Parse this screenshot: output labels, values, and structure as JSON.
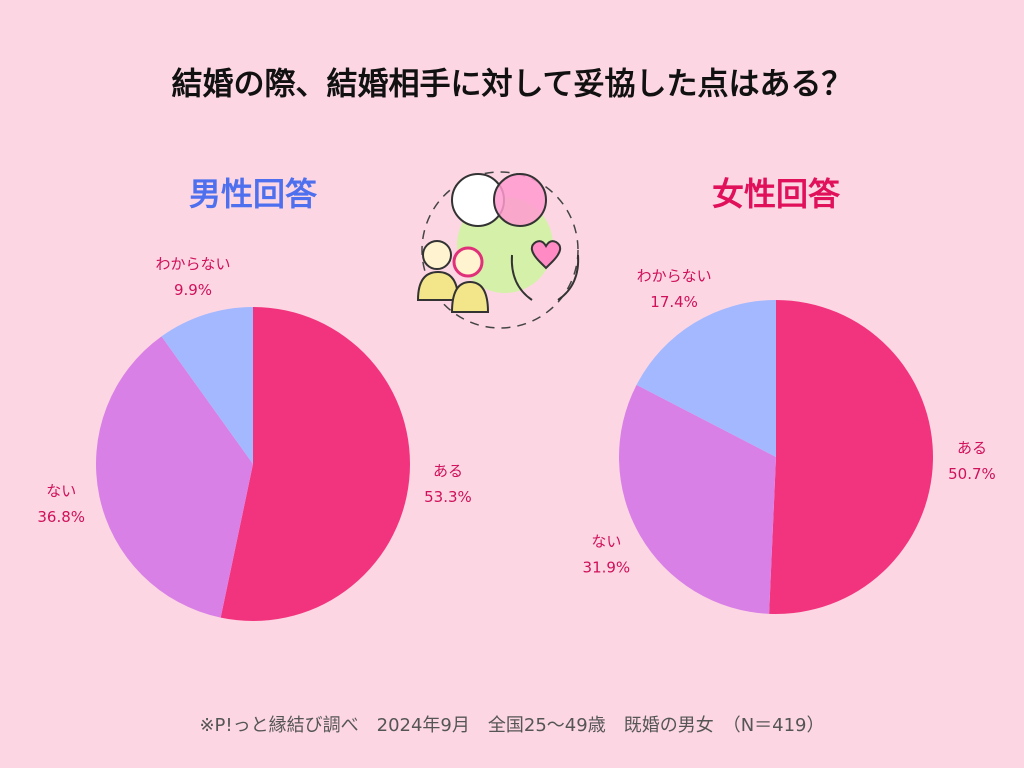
{
  "title": "結婚の際、結婚相手に対して妥協した点はある？",
  "footnote": "※P!っと縁結び調べ　2024年9月　全国25～49歳　既婚の男女　（N＝419）",
  "chart_data": [
    {
      "type": "pie",
      "title": "男性回答",
      "title_color": "#4f70ee",
      "categories": [
        "ある",
        "ない",
        "わからない"
      ],
      "values": [
        53.3,
        36.8,
        9.9
      ],
      "value_labels": [
        "53.3%",
        "36.8%",
        "9.9%"
      ],
      "colors": [
        "#f2347e",
        "#d980e6",
        "#a3b8ff"
      ]
    },
    {
      "type": "pie",
      "title": "女性回答",
      "title_color": "#e0105a",
      "categories": [
        "ある",
        "ない",
        "わからない"
      ],
      "values": [
        50.7,
        31.9,
        17.4
      ],
      "value_labels": [
        "50.7%",
        "31.9%",
        "17.4%"
      ],
      "colors": [
        "#f2347e",
        "#d980e6",
        "#a3b8ff"
      ]
    }
  ]
}
